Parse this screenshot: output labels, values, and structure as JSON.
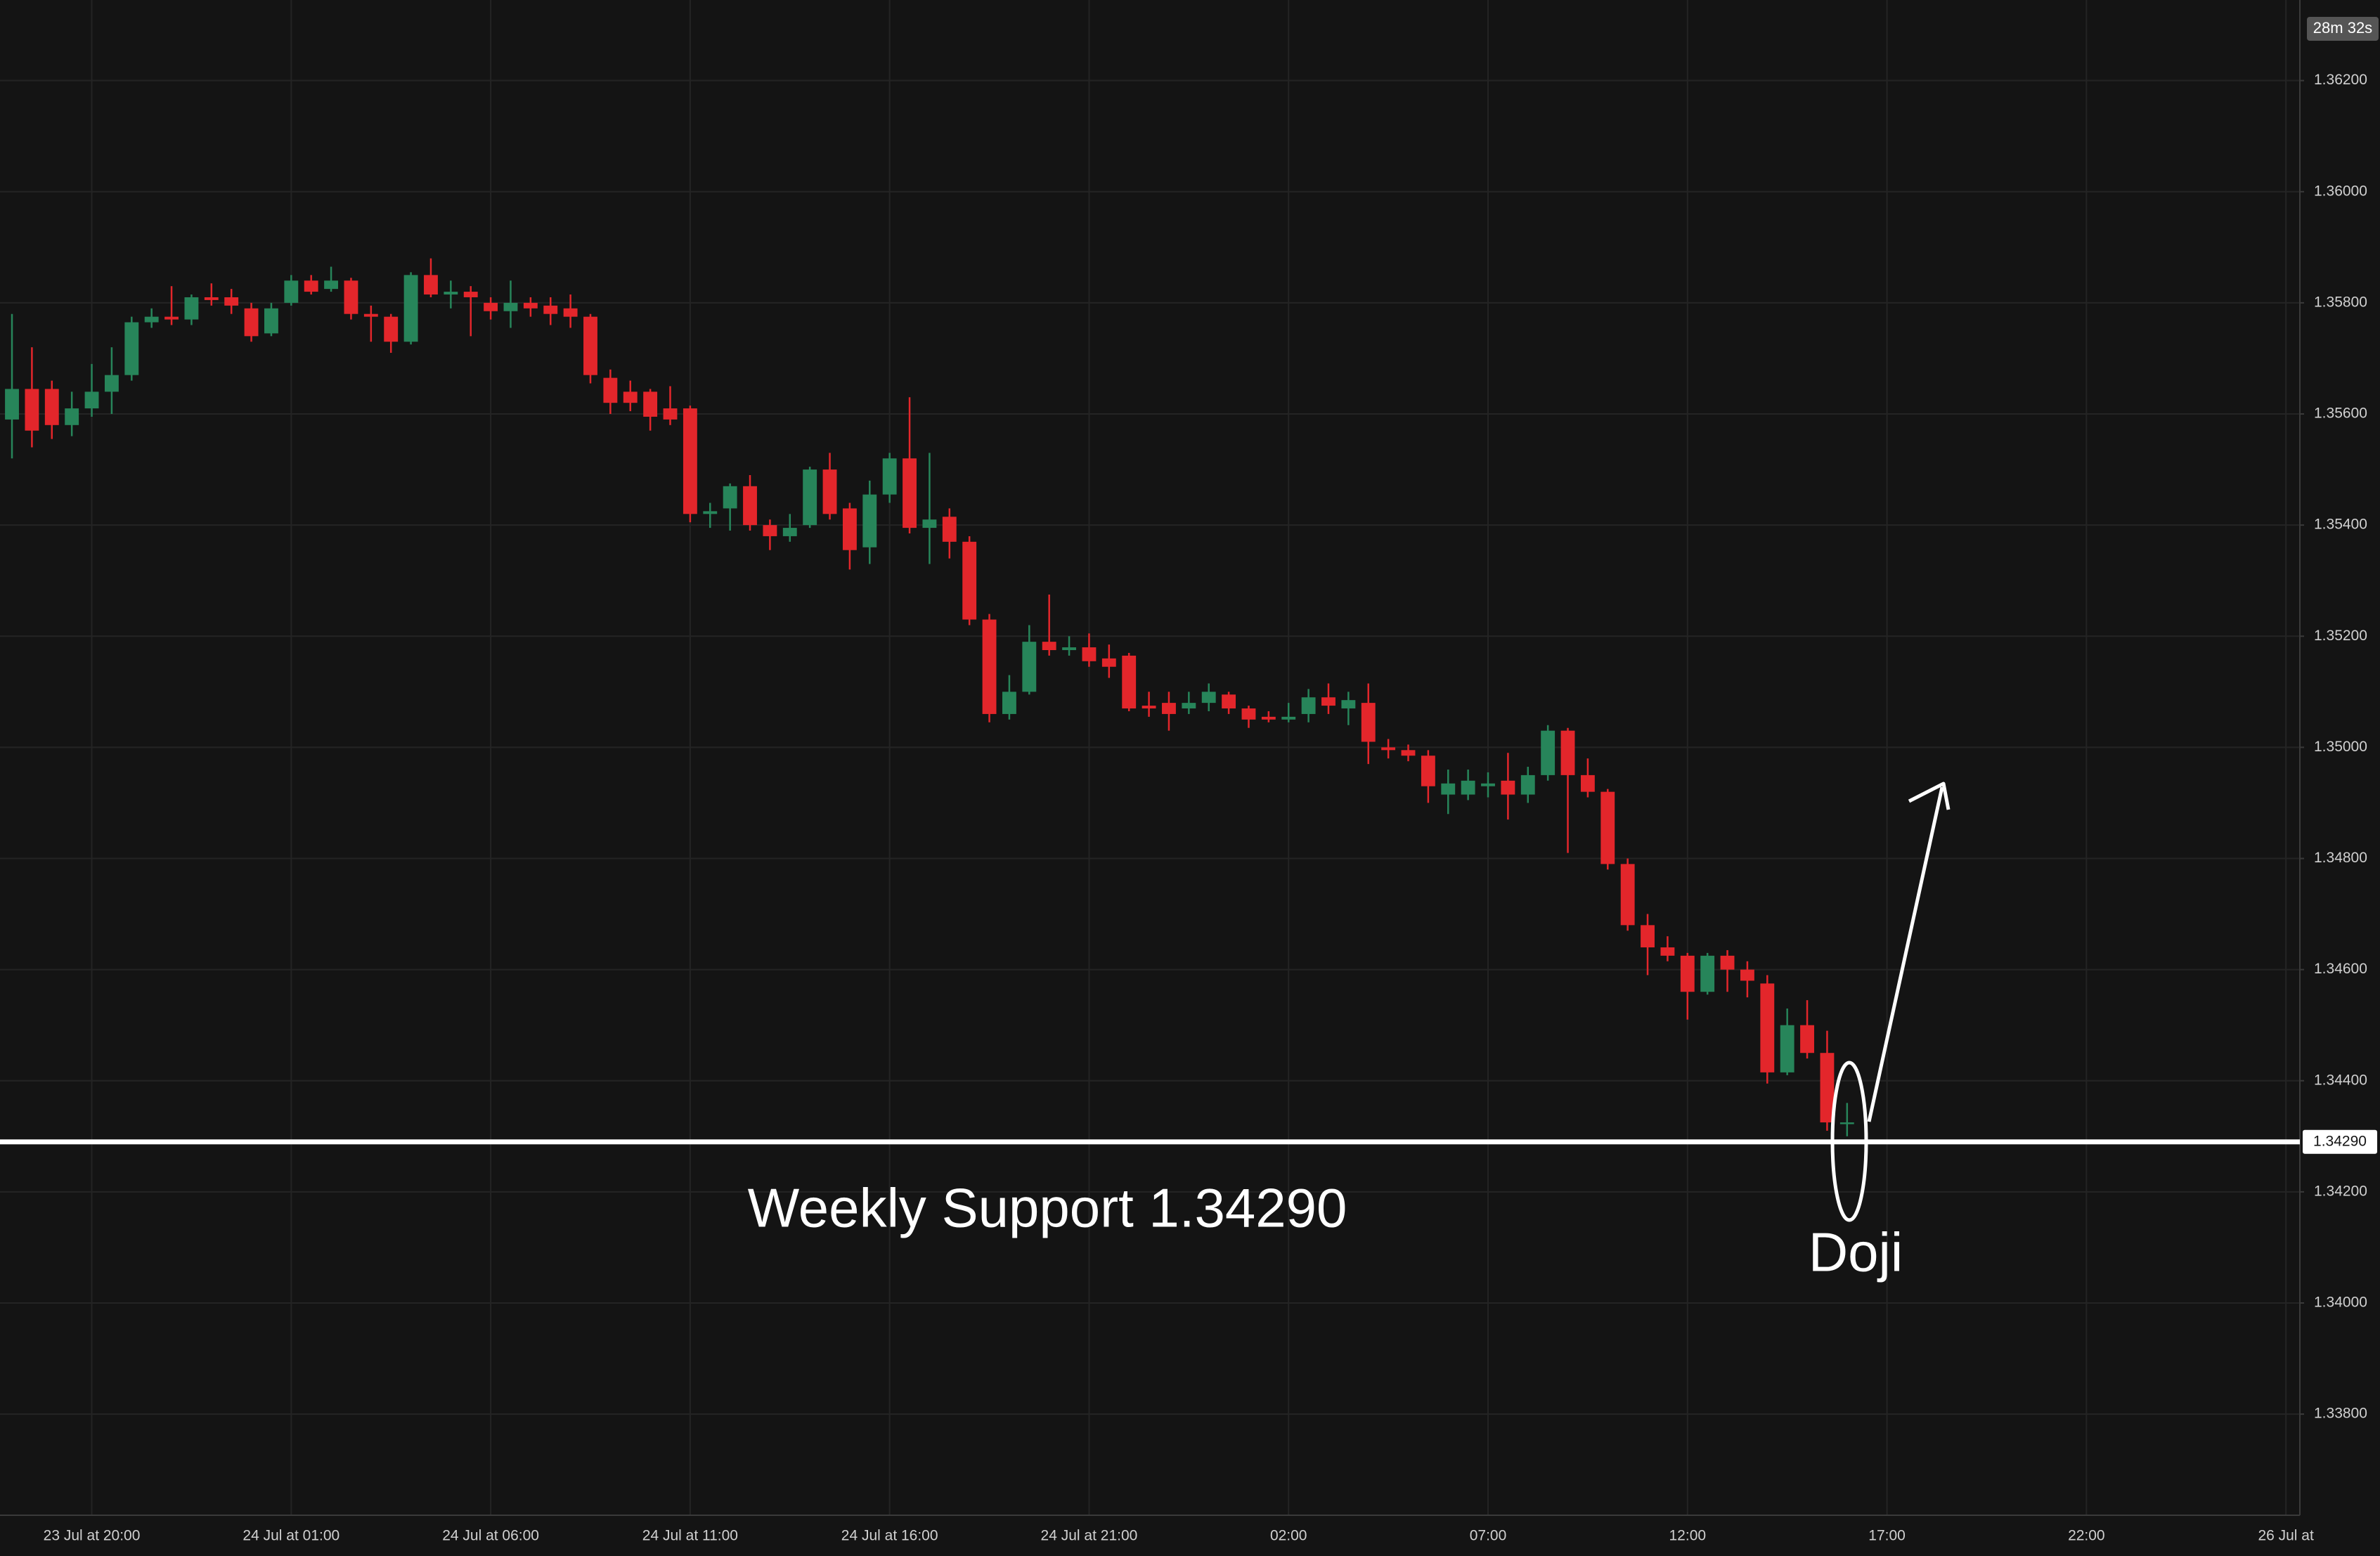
{
  "chart_data": {
    "type": "candlestick",
    "up_color": "#27855a",
    "down_color": "#e3262b",
    "grid": true,
    "countdown": "28m 32s",
    "support": {
      "value": 1.3429,
      "label": "Weekly Support 1.34290",
      "axis_label": "1.34290",
      "color": "#ffffff"
    },
    "annotation": "Doji",
    "xlim": [
      -0.6,
      114.7
    ],
    "xticks": [
      {
        "value": 4,
        "label": "23 Jul at 20:00"
      },
      {
        "value": 14,
        "label": "24 Jul at 01:00"
      },
      {
        "value": 24,
        "label": "24 Jul at 06:00"
      },
      {
        "value": 34,
        "label": "24 Jul at 11:00"
      },
      {
        "value": 44,
        "label": "24 Jul at 16:00"
      },
      {
        "value": 54,
        "label": "24 Jul at 21:00"
      },
      {
        "value": 64,
        "label": "02:00"
      },
      {
        "value": 74,
        "label": "07:00"
      },
      {
        "value": 84,
        "label": "12:00"
      },
      {
        "value": 94,
        "label": "17:00"
      },
      {
        "value": 104,
        "label": "22:00"
      },
      {
        "value": 114,
        "label": "26 Jul at"
      }
    ],
    "ylim": [
      1.33618,
      1.36345
    ],
    "yticks": [
      {
        "value": 1.362,
        "label": "1.36200"
      },
      {
        "value": 1.36,
        "label": "1.36000"
      },
      {
        "value": 1.358,
        "label": "1.35800"
      },
      {
        "value": 1.356,
        "label": "1.35600"
      },
      {
        "value": 1.354,
        "label": "1.35400"
      },
      {
        "value": 1.352,
        "label": "1.35200"
      },
      {
        "value": 1.35,
        "label": "1.35000"
      },
      {
        "value": 1.348,
        "label": "1.34800"
      },
      {
        "value": 1.346,
        "label": "1.34600"
      },
      {
        "value": 1.344,
        "label": "1.34400"
      },
      {
        "value": 1.342,
        "label": "1.34200"
      },
      {
        "value": 1.34,
        "label": "1.34000"
      },
      {
        "value": 1.338,
        "label": "1.33800"
      }
    ],
    "open": [
      1.3559,
      1.35645,
      1.35645,
      1.3558,
      1.3561,
      1.3564,
      1.3567,
      1.35765,
      1.35775,
      1.3577,
      1.3581,
      1.3581,
      1.3579,
      1.35745,
      1.358,
      1.3584,
      1.35825,
      1.3584,
      1.3578,
      1.35775,
      1.3573,
      1.3585,
      1.35815,
      1.3582,
      1.358,
      1.35785,
      1.358,
      1.35795,
      1.3579,
      1.35775,
      1.35665,
      1.3564,
      1.3564,
      1.3561,
      1.3561,
      1.3542,
      1.3543,
      1.3547,
      1.354,
      1.3538,
      1.354,
      1.355,
      1.3543,
      1.3536,
      1.35455,
      1.3552,
      1.35395,
      1.35415,
      1.3537,
      1.3523,
      1.3506,
      1.351,
      1.3519,
      1.35175,
      1.3518,
      1.3516,
      1.35165,
      1.35075,
      1.3508,
      1.3507,
      1.3508,
      1.35095,
      1.3507,
      1.35055,
      1.3505,
      1.3506,
      1.3509,
      1.3507,
      1.3508,
      1.35,
      1.34995,
      1.34985,
      1.34915,
      1.34915,
      1.3493,
      1.3494,
      1.34915,
      1.3495,
      1.3503,
      1.3495,
      1.3492,
      1.3479,
      1.3468,
      1.3464,
      1.34625,
      1.3456,
      1.34625,
      1.346,
      1.34575,
      1.34415,
      1.345,
      1.3445,
      1.34325
    ],
    "high": [
      1.3578,
      1.3572,
      1.3566,
      1.3564,
      1.3569,
      1.3572,
      1.35775,
      1.3579,
      1.3583,
      1.35815,
      1.35835,
      1.35825,
      1.358,
      1.358,
      1.3585,
      1.3585,
      1.35865,
      1.35845,
      1.35795,
      1.3578,
      1.35855,
      1.3588,
      1.3584,
      1.3583,
      1.3581,
      1.3584,
      1.3581,
      1.3581,
      1.35815,
      1.3578,
      1.3568,
      1.3566,
      1.35645,
      1.3565,
      1.35615,
      1.3544,
      1.35475,
      1.3549,
      1.3541,
      1.3542,
      1.35505,
      1.3553,
      1.3544,
      1.3548,
      1.3553,
      1.3563,
      1.3553,
      1.3543,
      1.3538,
      1.3524,
      1.3513,
      1.3522,
      1.35275,
      1.352,
      1.35205,
      1.35185,
      1.3517,
      1.351,
      1.351,
      1.351,
      1.35115,
      1.351,
      1.35075,
      1.35065,
      1.3508,
      1.35105,
      1.35115,
      1.351,
      1.35115,
      1.35015,
      1.35005,
      1.34995,
      1.3496,
      1.3496,
      1.34955,
      1.3499,
      1.34965,
      1.3504,
      1.35035,
      1.3498,
      1.34925,
      1.348,
      1.347,
      1.3466,
      1.3463,
      1.3463,
      1.34635,
      1.34615,
      1.3459,
      1.3453,
      1.34545,
      1.3449,
      1.3436
    ],
    "low": [
      1.3552,
      1.3554,
      1.35555,
      1.3556,
      1.35595,
      1.356,
      1.3566,
      1.35755,
      1.3576,
      1.3576,
      1.35795,
      1.3578,
      1.3573,
      1.3574,
      1.35795,
      1.35815,
      1.3582,
      1.3577,
      1.3573,
      1.3571,
      1.35725,
      1.3581,
      1.3579,
      1.3574,
      1.3577,
      1.35755,
      1.35775,
      1.3576,
      1.35755,
      1.35655,
      1.356,
      1.35605,
      1.3557,
      1.3558,
      1.35405,
      1.35395,
      1.3539,
      1.3539,
      1.35355,
      1.3537,
      1.35395,
      1.3541,
      1.3532,
      1.3533,
      1.3544,
      1.35385,
      1.3533,
      1.3534,
      1.3522,
      1.35045,
      1.3505,
      1.35095,
      1.35165,
      1.35165,
      1.35145,
      1.35125,
      1.35065,
      1.35055,
      1.3503,
      1.3506,
      1.35065,
      1.3506,
      1.35035,
      1.35045,
      1.35045,
      1.35045,
      1.3506,
      1.3504,
      1.3497,
      1.3498,
      1.34975,
      1.349,
      1.3488,
      1.34905,
      1.3491,
      1.3487,
      1.349,
      1.3494,
      1.3481,
      1.3491,
      1.3478,
      1.3467,
      1.3459,
      1.34615,
      1.3451,
      1.34555,
      1.3456,
      1.3455,
      1.34395,
      1.3441,
      1.3444,
      1.3431,
      1.343
    ],
    "close": [
      1.35645,
      1.3557,
      1.3558,
      1.3561,
      1.3564,
      1.3567,
      1.35765,
      1.35775,
      1.3577,
      1.3581,
      1.35805,
      1.35795,
      1.3574,
      1.3579,
      1.3584,
      1.3582,
      1.3584,
      1.3578,
      1.35775,
      1.3573,
      1.3585,
      1.35815,
      1.3582,
      1.3581,
      1.35785,
      1.358,
      1.3579,
      1.3578,
      1.35775,
      1.3567,
      1.3562,
      1.3562,
      1.35595,
      1.3559,
      1.3542,
      1.35425,
      1.3547,
      1.354,
      1.3538,
      1.35395,
      1.355,
      1.3542,
      1.35355,
      1.35455,
      1.3552,
      1.35395,
      1.3541,
      1.3537,
      1.3523,
      1.3506,
      1.351,
      1.3519,
      1.35175,
      1.3518,
      1.35155,
      1.35145,
      1.3507,
      1.3507,
      1.3506,
      1.3508,
      1.351,
      1.3507,
      1.3505,
      1.3505,
      1.35055,
      1.3509,
      1.35075,
      1.35085,
      1.3501,
      1.34995,
      1.34985,
      1.3493,
      1.34935,
      1.3494,
      1.34935,
      1.34915,
      1.3495,
      1.3503,
      1.3495,
      1.3492,
      1.3479,
      1.3468,
      1.3464,
      1.34625,
      1.3456,
      1.34625,
      1.346,
      1.3458,
      1.34415,
      1.345,
      1.3445,
      1.34325,
      1.34325
    ]
  }
}
